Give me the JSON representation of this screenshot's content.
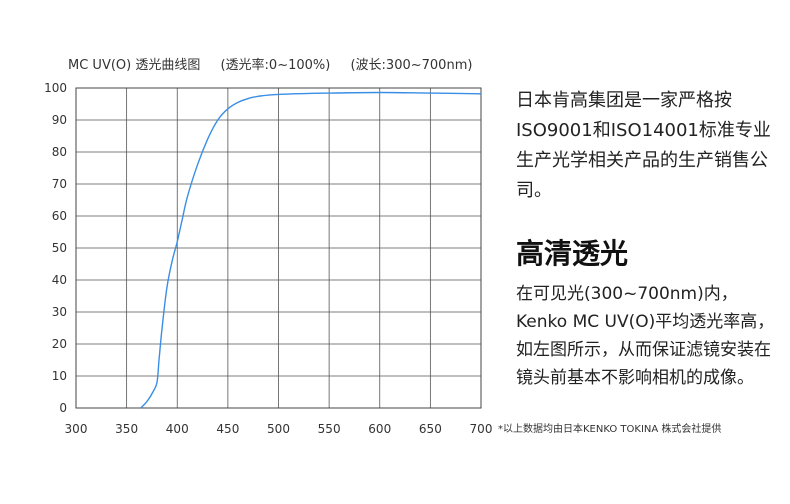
{
  "chart_data": {
    "type": "line",
    "title_parts": [
      "MC UV(O) 透光曲线图",
      "(透光率:0~100%)",
      "(波长:300~700nm)"
    ],
    "x_ticks": [
      300,
      350,
      400,
      450,
      500,
      550,
      600,
      650,
      700
    ],
    "y_ticks": [
      0,
      10,
      20,
      30,
      40,
      50,
      60,
      70,
      80,
      90,
      100
    ],
    "xlim": [
      300,
      700
    ],
    "ylim": [
      0,
      100
    ],
    "grid": true,
    "line_color": "#3a8ee6",
    "series": [
      {
        "x": [
          364,
          370,
          376,
          380,
          382,
          385,
          390,
          395,
          400,
          405,
          410,
          420,
          430,
          440,
          450,
          460,
          470,
          480,
          500,
          550,
          600,
          650,
          700
        ],
        "y": [
          0,
          2,
          5,
          8,
          15,
          25,
          38,
          46,
          52,
          59,
          66,
          76,
          84,
          90,
          93.5,
          95.5,
          96.7,
          97.4,
          98,
          98.4,
          98.6,
          98.4,
          98.2
        ]
      }
    ]
  },
  "side": {
    "intro": "日本肯高集团是一家严格按ISO9001和ISO14001标准专业生产光学相关产品的生产销售公司。",
    "headline": "高清透光",
    "body": "在可见光(300~700nm)内，Kenko MC UV(O)平均透光率高，如左图所示，从而保证滤镜安装在镜头前基本不影响相机的成像。"
  },
  "footnote": "*以上数据均由日本KENKO TOKINA 株式会社提供"
}
